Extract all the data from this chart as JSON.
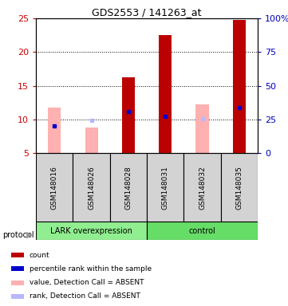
{
  "title": "GDS2553 / 141263_at",
  "samples": [
    "GSM148016",
    "GSM148026",
    "GSM148028",
    "GSM148031",
    "GSM148032",
    "GSM148035"
  ],
  "ylim_left": [
    5,
    25
  ],
  "ylim_right": [
    0,
    100
  ],
  "yticks_left": [
    5,
    10,
    15,
    20,
    25
  ],
  "yticks_right": [
    0,
    25,
    50,
    75,
    100
  ],
  "red_bars": [
    null,
    null,
    16.2,
    22.5,
    null,
    24.8
  ],
  "pink_bars": [
    11.7,
    8.8,
    null,
    null,
    12.2,
    null
  ],
  "blue_markers": [
    9.0,
    null,
    11.2,
    10.5,
    null,
    11.8
  ],
  "lavender_markers": [
    null,
    9.8,
    null,
    null,
    10.1,
    null
  ],
  "bar_width": 0.35,
  "left_tick_color": "#cc0000",
  "right_tick_color": "#0000bb",
  "red_color": "#bb0000",
  "pink_color": "#ffb0b0",
  "blue_color": "#0000cc",
  "lavender_color": "#b8b8ff",
  "gray_box_color": "#d3d3d3",
  "lark_color": "#90ee90",
  "control_color": "#66dd66",
  "protocol_label": "protocol",
  "lark_label": "LARK overexpression",
  "control_label": "control",
  "legend_labels": [
    "count",
    "percentile rank within the sample",
    "value, Detection Call = ABSENT",
    "rank, Detection Call = ABSENT"
  ],
  "legend_colors": [
    "#bb0000",
    "#0000cc",
    "#ffb0b0",
    "#b8b8ff"
  ]
}
